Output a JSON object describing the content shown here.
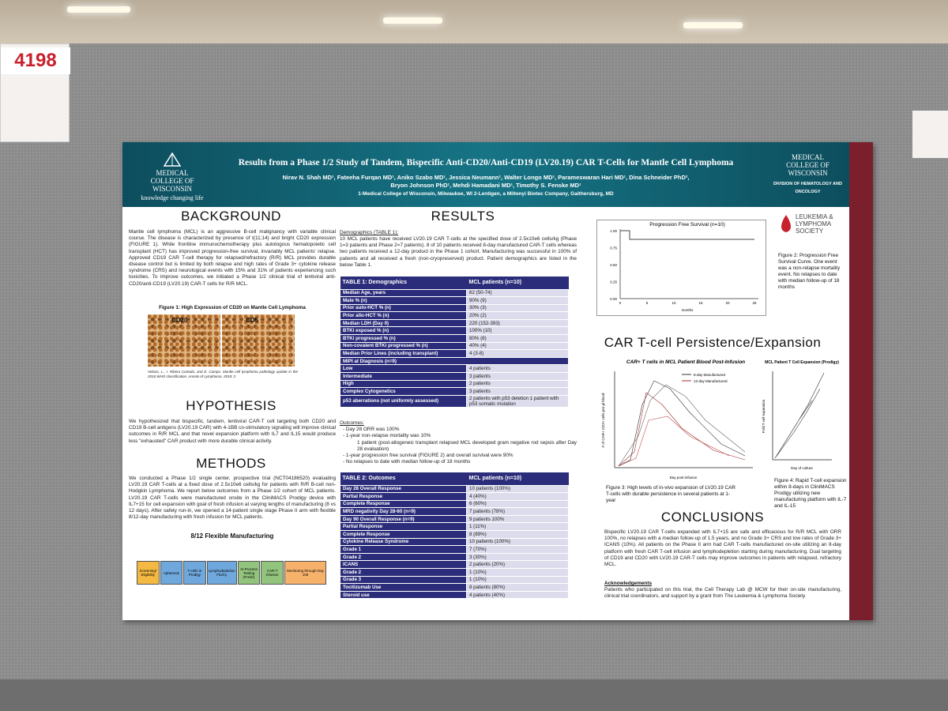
{
  "sign": {
    "number": "4198"
  },
  "header": {
    "title": "Results from a Phase 1/2 Study of Tandem, Bispecific Anti-CD20/Anti-CD19 (LV20.19) CAR T-Cells for Mantle Cell Lymphoma",
    "authors": [
      "Nirav N. Shah MD¹, Fateeha Furqan MD¹, Aniko Szabo MD¹, Jessica Neumann¹, Walter Longo MD¹, Parameswaran Hari MD¹, Dina Schneider PhD²,",
      "Bryon Johnson PhD¹, Mehdi Hamadani MD¹, Timothy S. Fenske MD¹"
    ],
    "affiliations": "1-Medical College of Wisconsin, Milwaukee, WI 2-Lentigen, a Miltenyi Biotec Company, Gaithersburg, MD",
    "logo_left": "MEDICAL COLLEGE OF WISCONSIN",
    "tagline": "knowledge changing life",
    "logo_right": "MEDICAL COLLEGE OF WISCONSIN",
    "division": "DIVISION OF HEMATOLOGY AND ONCOLOGY"
  },
  "background": {
    "heading": "BACKGROUND",
    "text": "Mantle cell lymphoma (MCL) is an aggressive B-cell malignancy with variable clinical course. The disease is characterized by presence of t(11;14) and bright CD20 expression (FIGURE 1). While frontline immunochemotherapy plus autologous hematopoietic cell transplant (HCT) has improved progression-free survival, invariably MCL patients' relapse. Approved CD19 CAR T-cell therapy for relapsed/refractory (R/R) MCL provides durable disease control but is limited by both relapse and high rates of Grade 3+ cytokine release syndrome (CRS) and neurological events with 15% and 31% of patients experiencing such toxicities. To improve outcomes, we initiated a Phase 1/2 clinical trial of lentiviral anti-CD20/anti-CD19 (LV20.19) CAR-T cells for R/R MCL.",
    "figure_caption": "Figure 1: High Expression of CD20 on Mantle Cell Lymphoma",
    "panels": [
      "CD20",
      "CD5"
    ],
    "citation": "Veloza, L., I. Ribera Cortada, and E. Campo. Mantle cell lymphoma pathology update in the 2016 WHO classification. Annals of Lymphoma. 2019; 3"
  },
  "hypothesis": {
    "heading": "HYPOTHESIS",
    "text": "We hypothesized that bispecific, tandem, lentiviral CAR-T cell targeting both CD20 and CD19 B-cell antigens (LV20.19 CAR) with 4-1BB co-stimulatory signaling will improve clinical outcomes in R/R MCL and that novel expansion platform with IL7 and IL15 would produce less \"exhausted\" CAR product with more durable clinical activity."
  },
  "methods": {
    "heading": "METHODS",
    "text": "We conducted a Phase 1/2 single center, prospective trial (NCT04186520) evaluating LV20.19 CAR T-cells at a fixed dose of 2.5x10e6 cells/kg for patients with R/R B-cell non-Hodgkin Lymphoma. We report below outcomes from a Phase 1/2 cohort of MCL patients. LV20.19 CAR T-cells were manufactured onsite in the CliniMACS Prodigy device with IL7+15 for cell expansion with goal of fresh infusion at varying lengths of manufacturing (8 vs 12 days). After safety run-in, we opened a 14-patient single stage Phase II arm with flexible 8/12-day manufacturing with fresh infusion for MCL patients.",
    "subheading": "8/12 Flexible Manufacturing",
    "steps": [
      "Screening/ Eligibility",
      "Apheresis",
      "T-cells in Prodigy",
      "Lymphodepletion Flu/Cy",
      "In-Process Testing (Fresh)",
      "CAR-T Infusion",
      "Monitoring through Day 100"
    ]
  },
  "results": {
    "heading": "RESULTS",
    "demographics_label": "Demographics (TABLE 1):",
    "demographics_text": "10 MCL patients have received LV20.19 CAR T-cells at the specified dose of 2.5x10e6 cells/kg (Phase 1=3 patients and Phase 2=7 patients). 8 of 10 patients received 8-day manufactured CAR-T cells whereas two patients received a 12-day product in the Phase 1 cohort. Manufacturing was successful in 100% of patients and all received a fresh (non-cryopreserved) product. Patient demographics are listed in the below Table 1.",
    "outcomes_label": "Outcomes:",
    "outcomes": [
      "Day 28 ORR was 100%",
      "1-year non-relapse mortality was 10%",
      "1-year progression free survival (FIGURE 2) and overall survival were 90%",
      "No relapses to date with median follow-up of 18 months"
    ],
    "outcomes_note": "1 patient (post-allogeneic transplant relapsed MCL developed gram negative rod sepsis after Day 28 evaluation)"
  },
  "table1": {
    "header": [
      "TABLE 1: Demographics",
      "MCL patients (n=10)"
    ],
    "rows": [
      [
        "Median Age, years",
        "62 (50-74)"
      ],
      [
        "Male % (n)",
        "90% (9)"
      ],
      [
        "Prior auto-HCT % (n)",
        "30% (3)"
      ],
      [
        "Prior allo-HCT % (n)",
        "20% (2)"
      ],
      [
        "Median LDH (Day 0)",
        "220 (152-393)"
      ],
      [
        "BTKi exposed % (n)",
        "100% (10)"
      ],
      [
        "BTKi progressed % (n)",
        "80% (8)"
      ],
      [
        "Non-covalent BTKi progressed % (n)",
        "40% (4)"
      ],
      [
        "Median Prior Lines (including transplant)",
        "4 (3-8)"
      ],
      [
        "MIPI at Diagnosis (n=9)"
      ],
      [
        "Low",
        "4 patients"
      ],
      [
        "Intermediate",
        "3 patients"
      ],
      [
        "High",
        "2 patients"
      ],
      [
        "Complex Cytogenetics",
        "3 patients"
      ],
      [
        "p53 aberrations (not uniformly assessed)",
        "2 patients with p53 deletion 1 patient with p53 somatic mutation"
      ]
    ]
  },
  "table2": {
    "header": [
      "TABLE 2: Outcomes",
      "MCL patients (n=10)"
    ],
    "rows": [
      [
        "Day 28 Overall Response",
        "10 patients (100%)"
      ],
      [
        "Partial Response",
        "4 (40%)"
      ],
      [
        "Complete Response",
        "6 (60%)"
      ],
      [
        "MRD negativity Day 28-60 (n=9)",
        "7 patients (78%)"
      ],
      [
        "Day 90 Overall Response (n=9)",
        "9 patients 100%"
      ],
      [
        "Partial Response",
        "1 (11%)"
      ],
      [
        "Complete Response",
        "8 (89%)"
      ],
      [
        "Cytokine Release Syndrome",
        "10 patients (100%)"
      ],
      [
        "Grade 1",
        "7 (70%)"
      ],
      [
        "Grade 2",
        "3 (30%)"
      ],
      [
        "ICANS",
        "2 patients (20%)"
      ],
      [
        "Grade 2",
        "1 (10%)"
      ],
      [
        "Grade 3",
        "1 (10%)"
      ],
      [
        "Tocilizumab Use",
        "8 patients (80%)"
      ],
      [
        "Steroid use",
        "4 patients (40%)"
      ]
    ]
  },
  "pfs": {
    "title": "Progression Free Survival (n=10)",
    "yticks": [
      "1.00",
      "0.75",
      "0.50",
      "0.25",
      "0.00"
    ],
    "xticks": [
      "0",
      "5",
      "10",
      "15",
      "20",
      "25"
    ],
    "xlabel": "months",
    "caption": "Figure 2: Progression Free Survival Curve. One event was a non-relapse mortality event. No relapses to date with median follow-up of 18 months"
  },
  "lls": {
    "name": "LEUKEMIA & LYMPHOMA SOCIETY"
  },
  "persistence": {
    "heading": "CAR T-cell Persistence/Expansion",
    "chart_a_title": "CAR+ T cells in MCL Patient Blood Post-Infusion",
    "legend": [
      "8-day Manufactured",
      "12-day Manufactured"
    ],
    "chart_a_ylabel": "# of CAR+ CD3+ cells per µl blood",
    "chart_a_xlabel": "Day post-infusion",
    "chart_b_title": "MCL Patient T Cell Expansion (Prodigy)",
    "chart_b_ylabel": "Fold T cell expansion",
    "chart_b_xlabel": "Day of culture",
    "figure3": "Figure 3: High levels of in-vivo expansion of LV20.19 CAR T-cells with durable persistence in several patients at 1-year",
    "figure4": "Figure 4: Rapid T-cell expansion within 8-days in CliniMACS Prodigy utilizing new manufacturing platform with IL-7 and IL-15"
  },
  "conclusions": {
    "heading": "CONCLUSIONS",
    "text": "Bispecific LV20.19 CAR T-cells expanded with IL7+15 are safe and efficacious for R/R MCL with ORR 100%, no relapses with a median follow-up of 1.5 years, and no Grade 3+ CRS and low rates of Grade 3+ ICANS (10%). All patients on the Phase II arm had CAR T-cells manufactured on-site utilizing an 8-day platform with fresh CAR T-cell infusion and lymphodepletion starting during manufacturing. Dual targeting of CD19 and CD20 with LV20.19 CAR-T cells may improve outcomes in patients with relapsed, refractory MCL.",
    "ack_heading": "Acknowledgements",
    "ack_text": "Patients who participated on this trial, the Cell Therapy Lab @ MCW for their on-site manufacturing, clinical trial coordinators, and support by a grant from The Leukemia & Lymphoma Society"
  }
}
